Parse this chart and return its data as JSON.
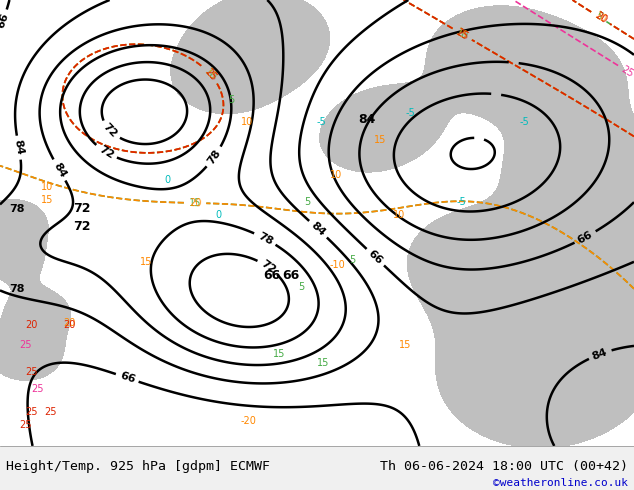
{
  "title_left": "Height/Temp. 925 hPa [gdpm] ECMWF",
  "title_right": "Th 06-06-2024 18:00 UTC (00+42)",
  "credit": "©weatheronline.co.uk",
  "bg_color": "#c8e6a0",
  "fig_width": 6.34,
  "fig_height": 4.9,
  "dpi": 100,
  "bottom_bar_color": "#f0f0f0",
  "title_fontsize": 9.5,
  "credit_color": "#0000cc",
  "title_color": "#000000"
}
